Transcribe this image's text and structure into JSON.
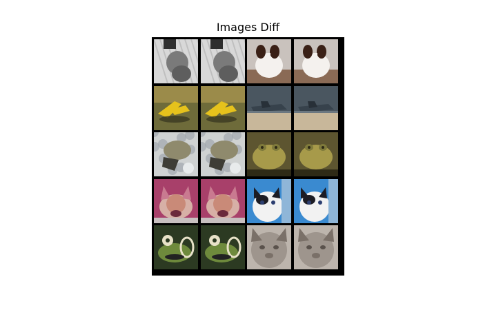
{
  "figure": {
    "title": "Images Diff"
  },
  "grid": {
    "rows": 5,
    "cols": 4,
    "tiles": [
      {
        "row": 0,
        "col": 0,
        "subject": "gray-cat",
        "palette": [
          "#d8d8d8",
          "#7a7a7a",
          "#2e2e2e",
          "#b0b0b0"
        ]
      },
      {
        "row": 0,
        "col": 1,
        "subject": "gray-cat",
        "palette": [
          "#d8d8d8",
          "#7a7a7a",
          "#2e2e2e",
          "#b0b0b0"
        ]
      },
      {
        "row": 0,
        "col": 2,
        "subject": "papillon-dog",
        "palette": [
          "#c9c2bd",
          "#f4f1ee",
          "#3a2016",
          "#8a6a55"
        ]
      },
      {
        "row": 0,
        "col": 3,
        "subject": "papillon-dog",
        "palette": [
          "#c9c2bd",
          "#f4f1ee",
          "#3a2016",
          "#8a6a55"
        ]
      },
      {
        "row": 1,
        "col": 0,
        "subject": "yellow-airplane",
        "palette": [
          "#6e6b3a",
          "#e6c21c",
          "#3b3a22",
          "#9b8b4a"
        ]
      },
      {
        "row": 1,
        "col": 1,
        "subject": "yellow-airplane",
        "palette": [
          "#6e6b3a",
          "#e6c21c",
          "#3b3a22",
          "#9b8b4a"
        ]
      },
      {
        "row": 1,
        "col": 2,
        "subject": "gray-airplane",
        "palette": [
          "#4a5660",
          "#37424c",
          "#c8b79a",
          "#6b7780"
        ]
      },
      {
        "row": 1,
        "col": 3,
        "subject": "gray-airplane",
        "palette": [
          "#4a5660",
          "#37424c",
          "#c8b79a",
          "#6b7780"
        ]
      },
      {
        "row": 2,
        "col": 0,
        "subject": "frog-rocks",
        "palette": [
          "#cfd2d2",
          "#8f8a6d",
          "#3e3d36",
          "#9aa0a8"
        ]
      },
      {
        "row": 2,
        "col": 1,
        "subject": "frog-rocks",
        "palette": [
          "#cfd2d2",
          "#8f8a6d",
          "#3e3d36",
          "#9aa0a8"
        ]
      },
      {
        "row": 2,
        "col": 2,
        "subject": "green-frog",
        "palette": [
          "#5d5530",
          "#a79a4a",
          "#2e2a16",
          "#7f7a3b"
        ]
      },
      {
        "row": 2,
        "col": 3,
        "subject": "green-frog",
        "palette": [
          "#5d5530",
          "#a79a4a",
          "#2e2a16",
          "#7f7a3b"
        ]
      },
      {
        "row": 3,
        "col": 0,
        "subject": "fox-magenta",
        "palette": [
          "#a8406a",
          "#d7b0a6",
          "#6a2a3c",
          "#c97a90"
        ]
      },
      {
        "row": 3,
        "col": 1,
        "subject": "fox-magenta",
        "palette": [
          "#a8406a",
          "#d7b0a6",
          "#6a2a3c",
          "#c97a90"
        ]
      },
      {
        "row": 3,
        "col": 2,
        "subject": "kitten-blue",
        "palette": [
          "#3a8ad0",
          "#f2f2f2",
          "#1c1c24",
          "#8fb6d8"
        ]
      },
      {
        "row": 3,
        "col": 3,
        "subject": "kitten-blue",
        "palette": [
          "#3a8ad0",
          "#f2f2f2",
          "#1c1c24",
          "#8fb6d8"
        ]
      },
      {
        "row": 4,
        "col": 0,
        "subject": "frog-dark",
        "palette": [
          "#2c3a22",
          "#6e8a3c",
          "#e8e2c8",
          "#4a5a30"
        ]
      },
      {
        "row": 4,
        "col": 1,
        "subject": "frog-dark",
        "palette": [
          "#2c3a22",
          "#6e8a3c",
          "#e8e2c8",
          "#4a5a30"
        ]
      },
      {
        "row": 4,
        "col": 2,
        "subject": "gray-cat-face",
        "palette": [
          "#9e958d",
          "#7a7068",
          "#5a524c",
          "#bdb5ad"
        ]
      },
      {
        "row": 4,
        "col": 3,
        "subject": "gray-cat-face",
        "palette": [
          "#9e958d",
          "#7a7068",
          "#5a524c",
          "#bdb5ad"
        ]
      }
    ]
  }
}
